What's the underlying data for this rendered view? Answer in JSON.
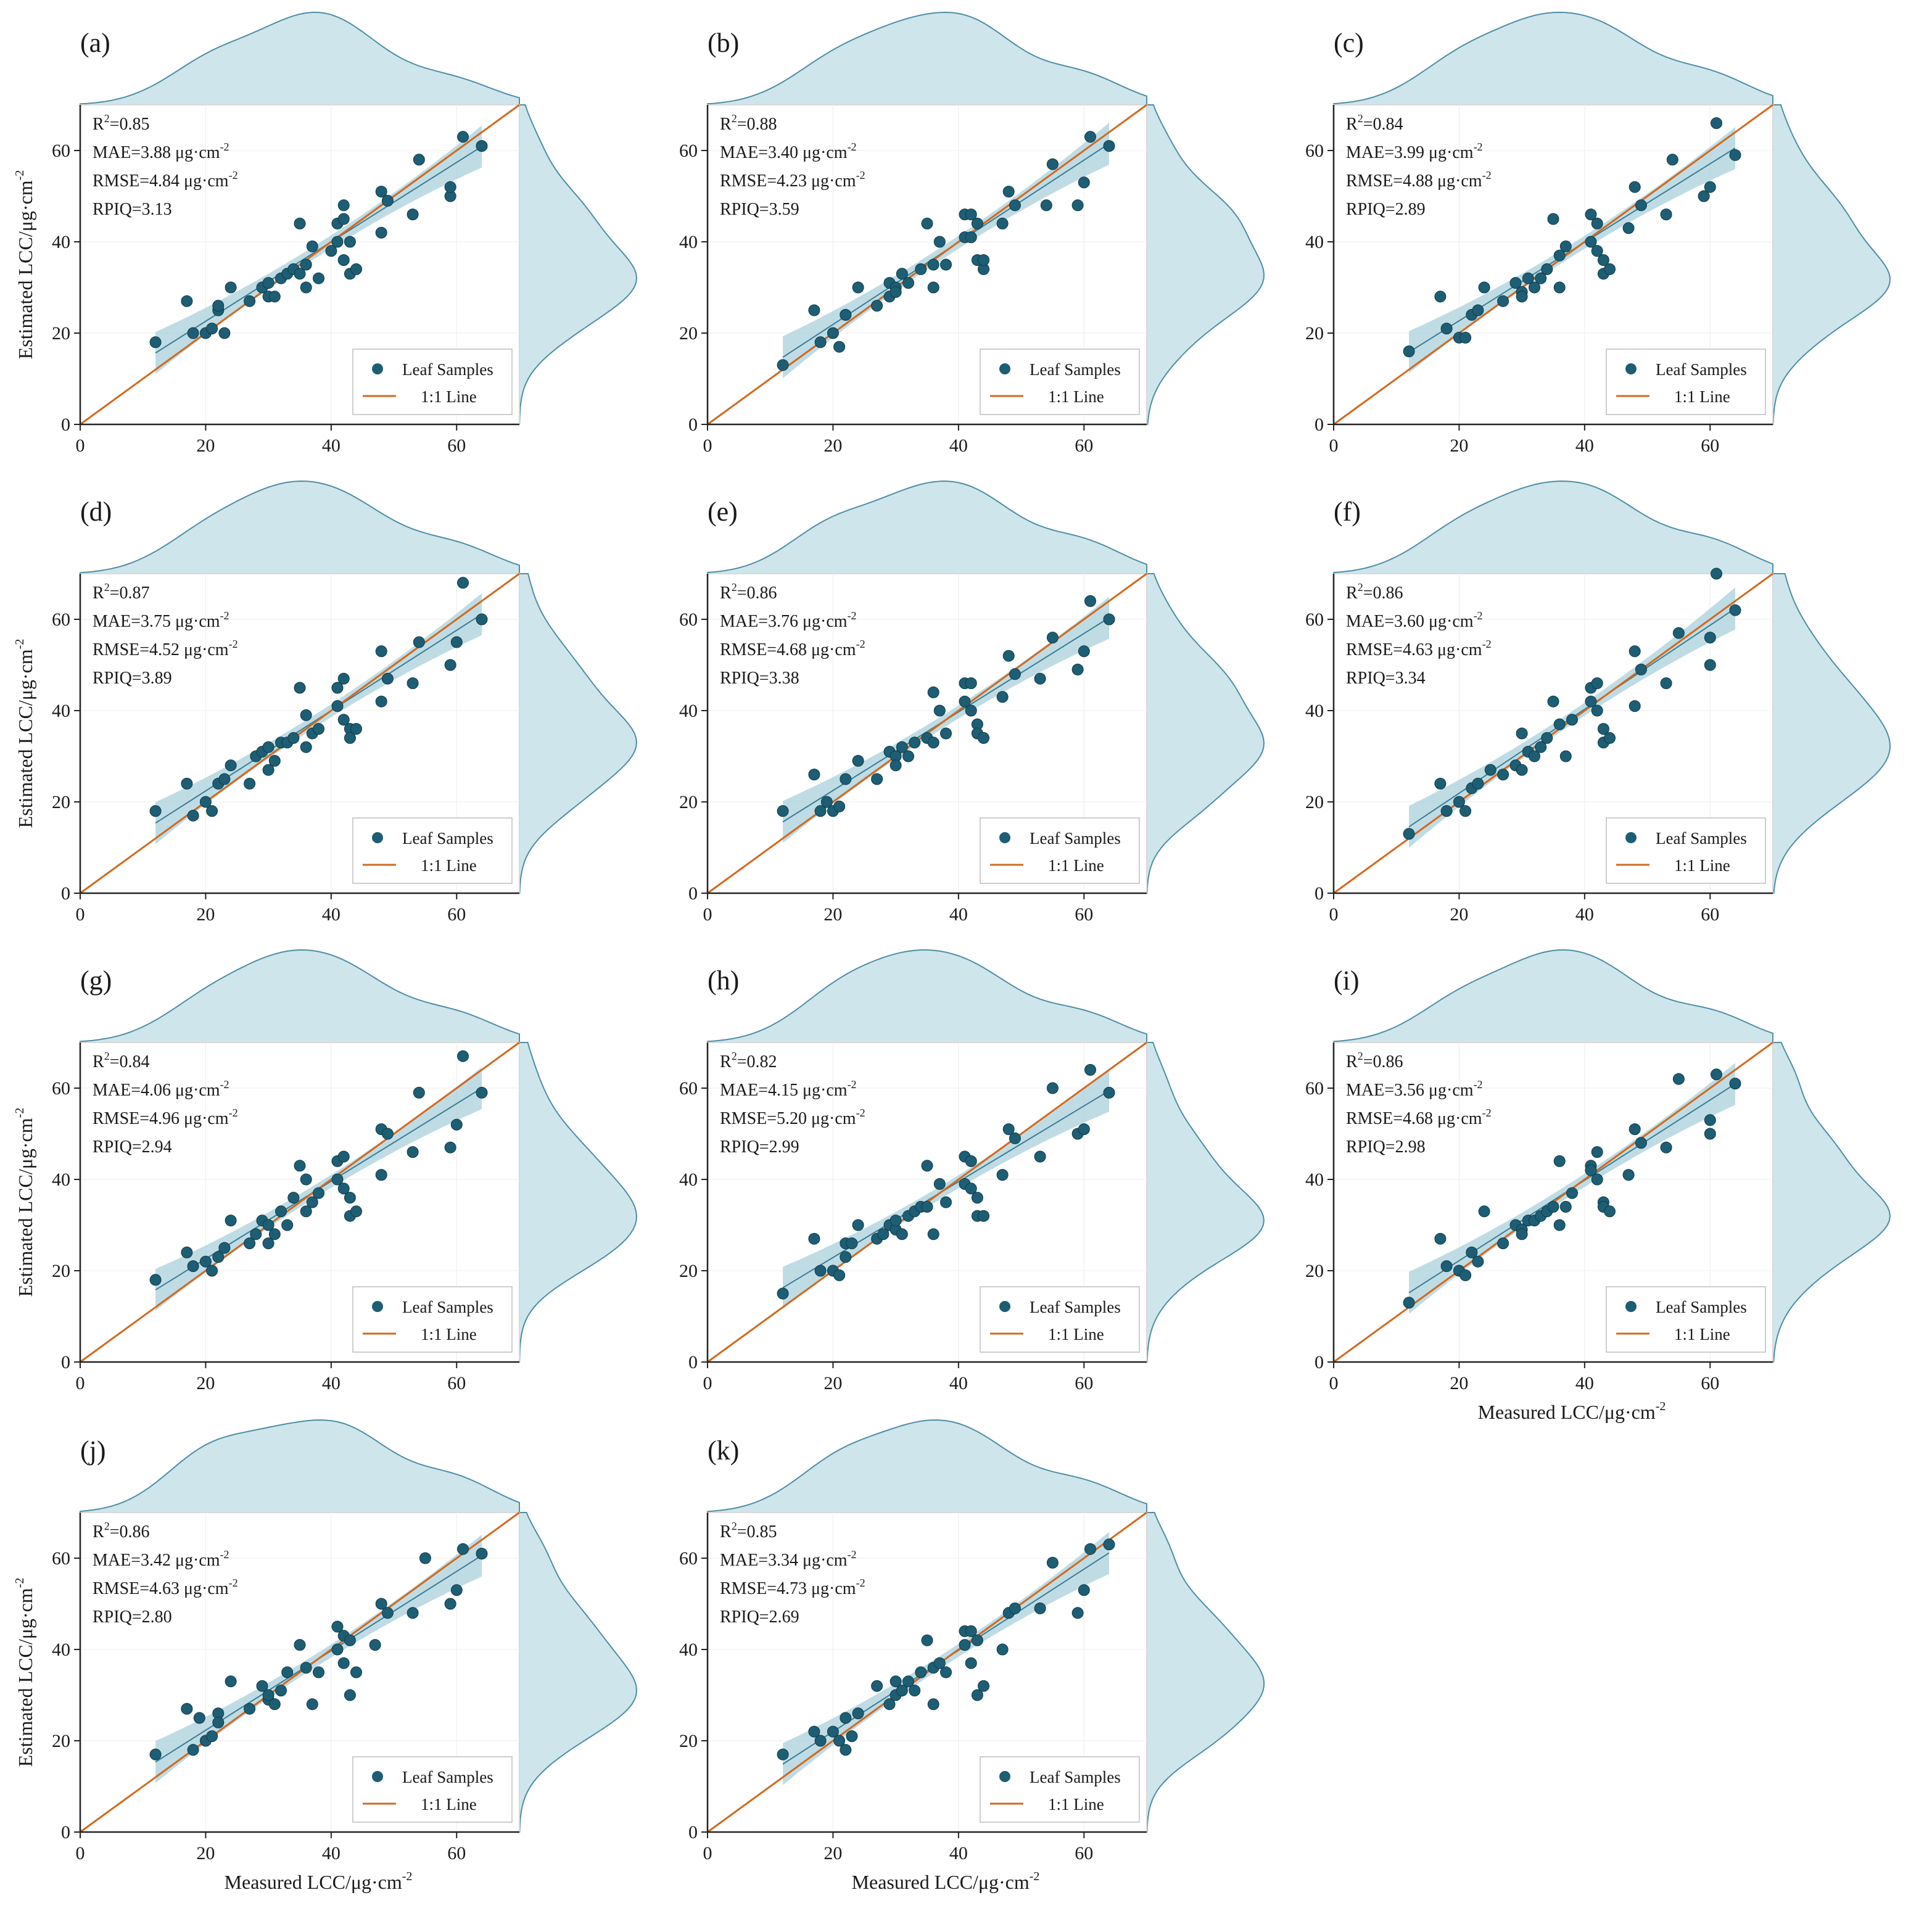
{
  "figure": {
    "shared_axes": {
      "xlim": [
        0,
        70
      ],
      "ylim": [
        0,
        70
      ],
      "xticks": [
        "0",
        "20",
        "40",
        "60"
      ],
      "yticks": [
        "0",
        "20",
        "40",
        "60"
      ],
      "xlabel": "Measured LCC/μg·cm",
      "xlabel_sup": "-2",
      "ylabel": "Estimated LCC/μg·cm",
      "ylabel_sup": "-2"
    },
    "legend": {
      "points": "Leaf Samples",
      "line": "1:1 Line"
    },
    "colors": {
      "point": "#1e5e74",
      "oneToOne": "#d2691e",
      "fit": "#3b7d94",
      "band": "#a9d0dc",
      "density": "#cfe5ec",
      "densityEdge": "#4d8ea4",
      "frame": "#d9d9d9",
      "axis": "#222222"
    }
  },
  "chart_data": [
    {
      "type": "scatter",
      "panel": "(a)",
      "R2": "R",
      "R2_val": "2=0.85",
      "MAE": "MAE=3.88 μg·cm",
      "RMSE": "RMSE=4.84 μg·cm",
      "RPIQ": "RPIQ=3.13",
      "sup": "-2",
      "fit": [
        0.87,
        5.2
      ],
      "x": [
        12,
        17,
        18,
        20,
        21,
        22,
        22,
        23,
        24,
        27,
        29,
        30,
        30,
        31,
        32,
        33,
        34,
        35,
        35,
        36,
        36,
        37,
        38,
        40,
        41,
        41,
        42,
        42,
        42,
        43,
        43,
        44,
        48,
        48,
        49,
        53,
        54,
        59,
        59,
        61,
        64
      ],
      "y": [
        18,
        27,
        20,
        20,
        21,
        25,
        26,
        20,
        30,
        27,
        30,
        28,
        31,
        28,
        32,
        33,
        34,
        44,
        33,
        30,
        35,
        39,
        32,
        38,
        44,
        40,
        48,
        36,
        45,
        33,
        40,
        34,
        51,
        42,
        49,
        46,
        58,
        50,
        52,
        63,
        61
      ]
    },
    {
      "type": "scatter",
      "panel": "(b)",
      "R2": "R",
      "R2_val": "2=0.88",
      "MAE": "MAE=3.40 μg·cm",
      "RMSE": "RMSE=4.23 μg·cm",
      "RPIQ": "RPIQ=3.59",
      "sup": "-2",
      "fit": [
        0.9,
        3.9
      ],
      "x": [
        12,
        17,
        18,
        20,
        21,
        22,
        22,
        24,
        27,
        29,
        29,
        30,
        30,
        31,
        32,
        34,
        35,
        36,
        36,
        37,
        38,
        41,
        41,
        42,
        42,
        43,
        43,
        44,
        44,
        47,
        48,
        49,
        54,
        55,
        59,
        60,
        61,
        64
      ],
      "y": [
        13,
        25,
        18,
        20,
        17,
        24,
        24,
        30,
        26,
        31,
        28,
        30,
        29,
        33,
        31,
        34,
        44,
        35,
        30,
        40,
        35,
        46,
        41,
        46,
        41,
        44,
        36,
        34,
        36,
        44,
        51,
        48,
        48,
        57,
        48,
        53,
        63,
        61
      ]
    },
    {
      "type": "scatter",
      "panel": "(c)",
      "R2": "R",
      "R2_val": "2=0.84",
      "MAE": "MAE=3.99 μg·cm",
      "RMSE": "RMSE=4.88 μg·cm",
      "RPIQ": "RPIQ=2.89",
      "sup": "-2",
      "fit": [
        0.86,
        5.5
      ],
      "x": [
        12,
        17,
        18,
        20,
        21,
        22,
        23,
        24,
        27,
        29,
        30,
        30,
        31,
        32,
        33,
        34,
        35,
        36,
        36,
        37,
        41,
        41,
        42,
        42,
        43,
        43,
        44,
        47,
        48,
        49,
        53,
        54,
        59,
        60,
        61,
        64
      ],
      "y": [
        16,
        28,
        21,
        19,
        19,
        24,
        25,
        30,
        27,
        31,
        29,
        28,
        32,
        30,
        32,
        34,
        45,
        37,
        30,
        39,
        46,
        40,
        38,
        44,
        36,
        33,
        34,
        43,
        52,
        48,
        46,
        58,
        50,
        52,
        66,
        59
      ]
    },
    {
      "type": "scatter",
      "panel": "(d)",
      "R2": "R",
      "R2_val": "2=0.87",
      "MAE": "MAE=3.75 μg·cm",
      "RMSE": "RMSE=4.52 μg·cm",
      "RPIQ": "RPIQ=3.89",
      "sup": "-2",
      "fit": [
        0.88,
        4.8
      ],
      "x": [
        12,
        17,
        18,
        20,
        21,
        22,
        23,
        24,
        27,
        28,
        29,
        30,
        30,
        31,
        32,
        33,
        34,
        35,
        36,
        36,
        37,
        38,
        41,
        41,
        42,
        42,
        43,
        43,
        44,
        48,
        48,
        49,
        53,
        54,
        59,
        60,
        61,
        64
      ],
      "y": [
        18,
        24,
        17,
        20,
        18,
        24,
        25,
        28,
        24,
        30,
        31,
        27,
        32,
        29,
        33,
        33,
        34,
        45,
        39,
        32,
        35,
        36,
        45,
        41,
        47,
        38,
        36,
        34,
        36,
        42,
        53,
        47,
        46,
        55,
        50,
        55,
        68,
        60
      ]
    },
    {
      "type": "scatter",
      "panel": "(e)",
      "R2": "R",
      "R2_val": "2=0.86",
      "MAE": "MAE=3.76 μg·cm",
      "RMSE": "RMSE=4.68 μg·cm",
      "RPIQ": "RPIQ=3.38",
      "sup": "-2",
      "fit": [
        0.86,
        5.3
      ],
      "x": [
        12,
        17,
        18,
        19,
        20,
        21,
        22,
        24,
        27,
        29,
        30,
        30,
        31,
        32,
        33,
        35,
        36,
        36,
        37,
        38,
        41,
        41,
        42,
        42,
        43,
        43,
        44,
        47,
        48,
        49,
        53,
        55,
        59,
        60,
        61,
        64
      ],
      "y": [
        18,
        26,
        18,
        20,
        18,
        19,
        25,
        29,
        25,
        31,
        30,
        28,
        32,
        30,
        33,
        34,
        44,
        33,
        40,
        35,
        46,
        42,
        46,
        40,
        37,
        35,
        34,
        43,
        52,
        48,
        47,
        56,
        49,
        53,
        64,
        60
      ]
    },
    {
      "type": "scatter",
      "panel": "(f)",
      "R2": "R",
      "R2_val": "2=0.86",
      "MAE": "MAE=3.60 μg·cm",
      "RMSE": "RMSE=4.63 μg·cm",
      "RPIQ": "RPIQ=3.34",
      "sup": "-2",
      "fit": [
        0.92,
        3.5
      ],
      "x": [
        12,
        17,
        18,
        20,
        21,
        22,
        23,
        25,
        27,
        29,
        30,
        30,
        31,
        32,
        33,
        34,
        35,
        36,
        37,
        38,
        41,
        41,
        42,
        42,
        43,
        43,
        44,
        48,
        48,
        49,
        53,
        55,
        60,
        60,
        61,
        64
      ],
      "y": [
        13,
        24,
        18,
        20,
        18,
        23,
        24,
        27,
        26,
        28,
        35,
        27,
        31,
        30,
        32,
        34,
        42,
        37,
        30,
        38,
        45,
        42,
        46,
        40,
        33,
        36,
        34,
        41,
        53,
        49,
        46,
        57,
        50,
        56,
        70,
        62
      ]
    },
    {
      "type": "scatter",
      "panel": "(g)",
      "R2": "R",
      "R2_val": "2=0.84",
      "MAE": "MAE=4.06 μg·cm",
      "RMSE": "RMSE=4.96 μg·cm",
      "RPIQ": "RPIQ=2.94",
      "sup": "-2",
      "fit": [
        0.85,
        5.6
      ],
      "x": [
        12,
        17,
        18,
        20,
        21,
        22,
        23,
        24,
        27,
        28,
        29,
        30,
        30,
        31,
        32,
        33,
        34,
        35,
        36,
        36,
        37,
        38,
        41,
        41,
        42,
        42,
        43,
        43,
        44,
        48,
        48,
        49,
        53,
        54,
        59,
        60,
        61,
        64
      ],
      "y": [
        18,
        24,
        21,
        22,
        20,
        23,
        25,
        31,
        26,
        28,
        31,
        26,
        30,
        28,
        33,
        30,
        36,
        43,
        33,
        40,
        35,
        37,
        44,
        40,
        45,
        38,
        36,
        32,
        33,
        41,
        51,
        50,
        46,
        59,
        47,
        52,
        67,
        59
      ]
    },
    {
      "type": "scatter",
      "panel": "(h)",
      "R2": "R",
      "R2_val": "2=0.82",
      "MAE": "MAE=4.15 μg·cm",
      "RMSE": "RMSE=5.20 μg·cm",
      "RPIQ": "RPIQ=2.99",
      "sup": "-2",
      "fit": [
        0.83,
        6.3
      ],
      "x": [
        12,
        17,
        18,
        20,
        21,
        22,
        22,
        23,
        24,
        27,
        28,
        29,
        30,
        30,
        31,
        32,
        33,
        34,
        35,
        35,
        36,
        37,
        38,
        41,
        41,
        42,
        42,
        43,
        43,
        44,
        47,
        48,
        49,
        53,
        55,
        59,
        60,
        61,
        64
      ],
      "y": [
        15,
        27,
        20,
        20,
        19,
        23,
        26,
        26,
        30,
        27,
        28,
        30,
        29,
        31,
        28,
        32,
        33,
        34,
        43,
        34,
        28,
        39,
        35,
        45,
        39,
        44,
        38,
        36,
        32,
        32,
        41,
        51,
        49,
        45,
        60,
        50,
        51,
        64,
        59
      ]
    },
    {
      "type": "scatter",
      "panel": "(i)",
      "R2": "R",
      "R2_val": "2=0.86",
      "MAE": "MAE=3.56 μg·cm",
      "RMSE": "RMSE=4.68 μg·cm",
      "RPIQ": "RPIQ=2.98",
      "sup": "-2",
      "fit": [
        0.88,
        4.6
      ],
      "x": [
        12,
        17,
        18,
        20,
        21,
        22,
        23,
        24,
        27,
        29,
        30,
        30,
        31,
        32,
        33,
        34,
        35,
        36,
        36,
        37,
        38,
        41,
        41,
        42,
        42,
        43,
        43,
        44,
        47,
        48,
        49,
        53,
        55,
        60,
        60,
        61,
        64
      ],
      "y": [
        13,
        27,
        21,
        20,
        19,
        24,
        22,
        33,
        26,
        30,
        29,
        28,
        31,
        31,
        32,
        33,
        34,
        44,
        30,
        34,
        37,
        43,
        42,
        46,
        40,
        35,
        34,
        33,
        41,
        51,
        48,
        47,
        62,
        50,
        53,
        63,
        61
      ]
    },
    {
      "type": "scatter",
      "panel": "(j)",
      "R2": "R",
      "R2_val": "2=0.86",
      "MAE": "MAE=3.42 μg·cm",
      "RMSE": "RMSE=4.63 μg·cm",
      "RPIQ": "RPIQ=2.80",
      "sup": "-2",
      "fit": [
        0.87,
        4.9
      ],
      "x": [
        12,
        17,
        18,
        19,
        20,
        21,
        22,
        22,
        24,
        27,
        29,
        30,
        30,
        31,
        32,
        33,
        35,
        36,
        37,
        38,
        41,
        41,
        42,
        42,
        43,
        43,
        44,
        47,
        48,
        49,
        53,
        55,
        59,
        60,
        61,
        64
      ],
      "y": [
        17,
        27,
        18,
        25,
        20,
        21,
        26,
        24,
        33,
        27,
        32,
        29,
        30,
        28,
        31,
        35,
        41,
        36,
        28,
        35,
        45,
        40,
        43,
        37,
        42,
        30,
        35,
        41,
        50,
        48,
        48,
        60,
        50,
        53,
        62,
        61
      ]
    },
    {
      "type": "scatter",
      "panel": "(k)",
      "R2": "R",
      "R2_val": "2=0.85",
      "MAE": "MAE=3.34 μg·cm",
      "RMSE": "RMSE=4.73 μg·cm",
      "RPIQ": "RPIQ=2.69",
      "sup": "-2",
      "fit": [
        0.89,
        4.2
      ],
      "x": [
        12,
        17,
        18,
        20,
        21,
        22,
        22,
        23,
        24,
        27,
        29,
        30,
        30,
        31,
        32,
        33,
        34,
        35,
        36,
        36,
        37,
        38,
        41,
        41,
        42,
        42,
        43,
        43,
        44,
        47,
        48,
        49,
        53,
        55,
        59,
        60,
        61,
        64
      ],
      "y": [
        17,
        22,
        20,
        22,
        20,
        25,
        18,
        21,
        26,
        32,
        28,
        33,
        30,
        31,
        33,
        31,
        35,
        42,
        36,
        28,
        37,
        35,
        44,
        41,
        44,
        37,
        42,
        30,
        32,
        40,
        48,
        49,
        49,
        59,
        48,
        53,
        62,
        63
      ]
    }
  ]
}
